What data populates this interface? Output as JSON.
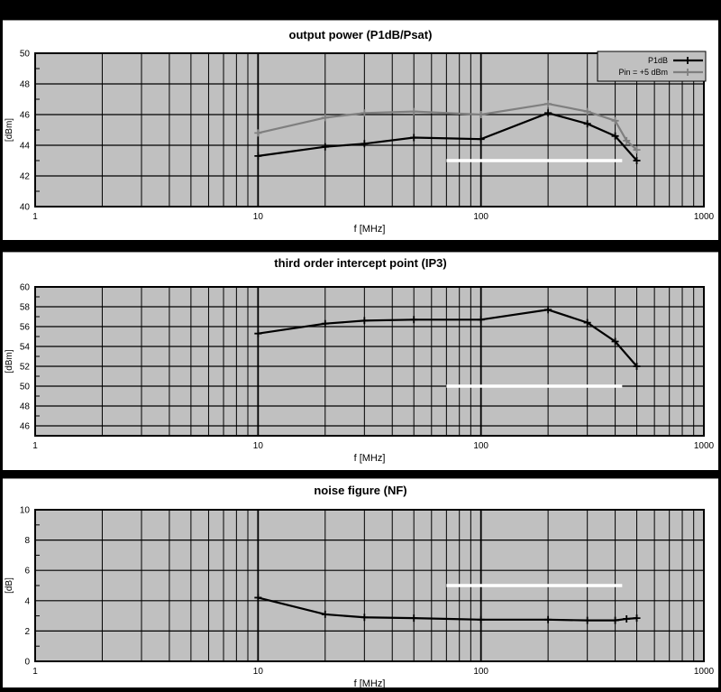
{
  "page": {
    "background": "#000000",
    "description": "three stacked RF amplifier measurement charts"
  },
  "colors": {
    "plot_bg": "#c0c0c0",
    "grid": "#000000",
    "panel_bg": "#ffffff",
    "series_black": "#000000",
    "series_gray": "#7f7f7f",
    "reference": "#ffffff"
  },
  "chart_data": [
    {
      "type": "line",
      "title": "output power (P1dB/Psat)",
      "xlabel": "f [MHz]",
      "ylabel": "[dBm]",
      "xscale": "log",
      "xlim": [
        1,
        1000
      ],
      "xticks": [
        1,
        10,
        100,
        1000
      ],
      "ylim": [
        40,
        50
      ],
      "ytick_step": 2,
      "grid": true,
      "legend_position": "top-right",
      "series": [
        {
          "name": "P1dB",
          "color": "#000000",
          "points": [
            [
              10,
              43.3
            ],
            [
              20,
              43.9
            ],
            [
              30,
              44.1
            ],
            [
              50,
              44.5
            ],
            [
              100,
              44.4
            ],
            [
              200,
              46.1
            ],
            [
              300,
              45.4
            ],
            [
              400,
              44.6
            ],
            [
              500,
              43.0
            ]
          ]
        },
        {
          "name": "Pin = +5 dBm",
          "color": "#7f7f7f",
          "points": [
            [
              10,
              44.8
            ],
            [
              20,
              45.8
            ],
            [
              30,
              46.1
            ],
            [
              50,
              46.2
            ],
            [
              100,
              46.0
            ],
            [
              200,
              46.7
            ],
            [
              300,
              46.2
            ],
            [
              400,
              45.6
            ],
            [
              450,
              44.3
            ],
            [
              500,
              43.7
            ]
          ]
        }
      ],
      "reference_line": {
        "y": 43,
        "x_start": 70,
        "x_end": 430,
        "color": "#ffffff"
      }
    },
    {
      "type": "line",
      "title": "third order intercept point (IP3)",
      "xlabel": "f [MHz]",
      "ylabel": "[dBm]",
      "xscale": "log",
      "xlim": [
        1,
        1000
      ],
      "xticks": [
        1,
        10,
        100,
        1000
      ],
      "ylim": [
        45,
        60
      ],
      "ytick_step": 2,
      "grid": true,
      "legend_position": null,
      "series": [
        {
          "name": "IP3",
          "color": "#000000",
          "points": [
            [
              10,
              55.3
            ],
            [
              20,
              56.3
            ],
            [
              30,
              56.6
            ],
            [
              50,
              56.7
            ],
            [
              100,
              56.7
            ],
            [
              200,
              57.7
            ],
            [
              300,
              56.4
            ],
            [
              400,
              54.5
            ],
            [
              500,
              52.0
            ]
          ]
        }
      ],
      "reference_line": {
        "y": 50,
        "x_start": 70,
        "x_end": 430,
        "color": "#ffffff"
      }
    },
    {
      "type": "line",
      "title": "noise figure (NF)",
      "xlabel": "f [MHz]",
      "ylabel": "[dB]",
      "xscale": "log",
      "xlim": [
        1,
        1000
      ],
      "xticks": [
        1,
        10,
        100,
        1000
      ],
      "ylim": [
        0,
        10
      ],
      "ytick_step": 2,
      "grid": true,
      "legend_position": null,
      "series": [
        {
          "name": "NF",
          "color": "#000000",
          "points": [
            [
              10,
              4.2
            ],
            [
              20,
              3.1
            ],
            [
              30,
              2.9
            ],
            [
              50,
              2.85
            ],
            [
              100,
              2.75
            ],
            [
              200,
              2.75
            ],
            [
              300,
              2.7
            ],
            [
              400,
              2.7
            ],
            [
              450,
              2.8
            ],
            [
              500,
              2.85
            ]
          ]
        }
      ],
      "reference_line": {
        "y": 5,
        "x_start": 70,
        "x_end": 430,
        "color": "#ffffff"
      }
    }
  ]
}
